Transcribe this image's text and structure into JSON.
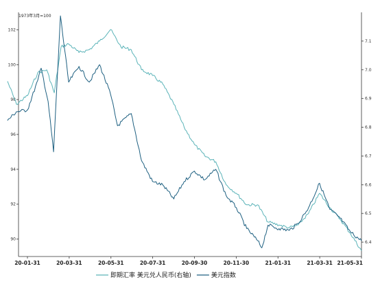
{
  "chart_data": {
    "type": "line",
    "left_axis_unit": "1973年3月=100",
    "x_ticks": [
      "20-01-31",
      "20-03-31",
      "20-05-31",
      "20-07-31",
      "20-09-30",
      "20-11-30",
      "21-01-31",
      "21-03-31",
      "21-05-31"
    ],
    "y_left": {
      "range": [
        89,
        103
      ],
      "ticks": [
        "90",
        "92",
        "94",
        "96",
        "98",
        "100",
        "102"
      ]
    },
    "y_right": {
      "range": [
        6.35,
        7.2
      ],
      "ticks": [
        "6.4",
        "6.5",
        "6.6",
        "6.7",
        "6.8",
        "6.9",
        "7.0",
        "7.1"
      ]
    },
    "grid": false,
    "legend_position": "bottom",
    "series": [
      {
        "name": "即期汇率 美元兑人民币(右轴)",
        "axis": "right",
        "color": "#5ab3b8",
        "x": [
          "2020-01-02",
          "2020-01-15",
          "2020-01-31",
          "2020-02-15",
          "2020-02-28",
          "2020-03-10",
          "2020-03-20",
          "2020-03-31",
          "2020-04-15",
          "2020-04-30",
          "2020-05-15",
          "2020-05-31",
          "2020-06-15",
          "2020-06-30",
          "2020-07-15",
          "2020-07-31",
          "2020-08-15",
          "2020-08-31",
          "2020-09-15",
          "2020-09-30",
          "2020-10-15",
          "2020-10-31",
          "2020-11-15",
          "2020-11-30",
          "2020-12-15",
          "2020-12-31",
          "2021-01-15",
          "2021-01-31",
          "2021-02-15",
          "2021-02-28",
          "2021-03-15",
          "2021-03-31",
          "2021-04-15",
          "2021-04-30",
          "2021-05-15",
          "2021-05-31"
        ],
        "values": [
          6.96,
          6.88,
          6.91,
          6.99,
          7.0,
          6.92,
          7.08,
          7.09,
          7.06,
          7.07,
          7.1,
          7.14,
          7.08,
          7.07,
          7.0,
          6.98,
          6.95,
          6.88,
          6.8,
          6.74,
          6.7,
          6.68,
          6.6,
          6.57,
          6.53,
          6.53,
          6.47,
          6.46,
          6.45,
          6.46,
          6.5,
          6.57,
          6.52,
          6.48,
          6.43,
          6.37
        ]
      },
      {
        "name": "美元指数",
        "axis": "left",
        "color": "#1d5f80",
        "x": [
          "2020-01-02",
          "2020-01-15",
          "2020-01-31",
          "2020-02-15",
          "2020-02-20",
          "2020-03-01",
          "2020-03-09",
          "2020-03-19",
          "2020-03-31",
          "2020-04-15",
          "2020-04-30",
          "2020-05-15",
          "2020-05-31",
          "2020-06-10",
          "2020-06-30",
          "2020-07-15",
          "2020-07-31",
          "2020-08-15",
          "2020-08-31",
          "2020-09-15",
          "2020-09-30",
          "2020-10-15",
          "2020-10-31",
          "2020-11-15",
          "2020-11-30",
          "2020-12-15",
          "2020-12-31",
          "2021-01-06",
          "2021-01-15",
          "2021-01-31",
          "2021-02-15",
          "2021-02-28",
          "2021-03-15",
          "2021-03-31",
          "2021-04-15",
          "2021-04-30",
          "2021-05-15",
          "2021-05-31"
        ],
        "values": [
          96.8,
          97.3,
          97.4,
          99.1,
          99.8,
          97.9,
          95.0,
          102.8,
          99.0,
          99.9,
          99.0,
          100.0,
          98.3,
          96.5,
          97.2,
          94.5,
          93.3,
          93.1,
          92.3,
          93.3,
          93.9,
          93.4,
          94.0,
          92.5,
          91.8,
          90.6,
          89.9,
          89.5,
          90.8,
          90.6,
          90.5,
          90.9,
          91.8,
          93.2,
          91.7,
          91.2,
          90.4,
          89.9
        ]
      }
    ]
  }
}
